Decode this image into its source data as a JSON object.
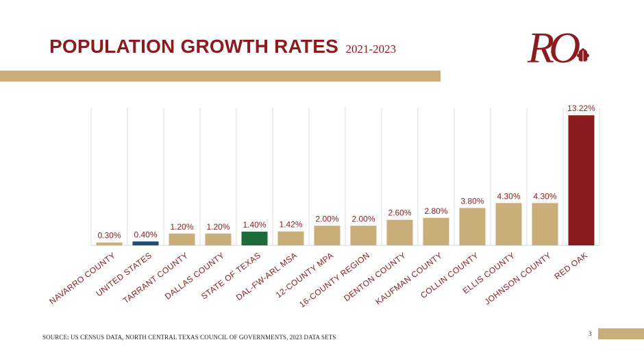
{
  "title": {
    "main": "POPULATION GROWTH RATES",
    "sub": "2021-2023"
  },
  "logo": {
    "text": "RO",
    "icon": "oak-leaf-icon"
  },
  "colors": {
    "tan": "#c9ae7a",
    "navy": "#1f4e79",
    "green": "#1e6b3a",
    "maroon": "#8a1c1f",
    "label": "#8a1c1f"
  },
  "chart_data": {
    "type": "bar",
    "title": "POPULATION GROWTH RATES 2021-2023",
    "xlabel": "",
    "ylabel": "",
    "ylim": [
      0,
      14
    ],
    "grid": "vertical",
    "categories": [
      "NAVARRO COUNTY",
      "UNITED STATES",
      "TARRANT COUNTY",
      "DALLAS COUNTY",
      "STATE OF TEXAS",
      "DAL-FW-ARL MSA",
      "12-COUNTY MPA",
      "16-COUNTY REGION",
      "DENTON COUNTY",
      "KAUFMAN COUNTY",
      "COLLIN COUNTY",
      "ELLIS COUNTY",
      "JOHNSON COUNTY",
      "RED OAK"
    ],
    "values": [
      0.3,
      0.4,
      1.2,
      1.2,
      1.4,
      1.42,
      2.0,
      2.0,
      2.6,
      2.8,
      3.8,
      4.3,
      4.3,
      13.22
    ],
    "labels": [
      "0.30%",
      "0.40%",
      "1.20%",
      "1.20%",
      "1.40%",
      "1.42%",
      "2.00%",
      "2.00%",
      "2.60%",
      "2.80%",
      "3.80%",
      "4.30%",
      "4.30%",
      "13.22%"
    ],
    "bar_colors": [
      "tan",
      "navy",
      "tan",
      "tan",
      "green",
      "tan",
      "tan",
      "tan",
      "tan",
      "tan",
      "tan",
      "tan",
      "tan",
      "maroon"
    ]
  },
  "footer": {
    "source": "SOURCE: US CENSUS DATA, NORTH CENTRAL TEXAS COUNCIL OF GOVERNMENTS, 2023 DATA SETS",
    "page": "3"
  }
}
